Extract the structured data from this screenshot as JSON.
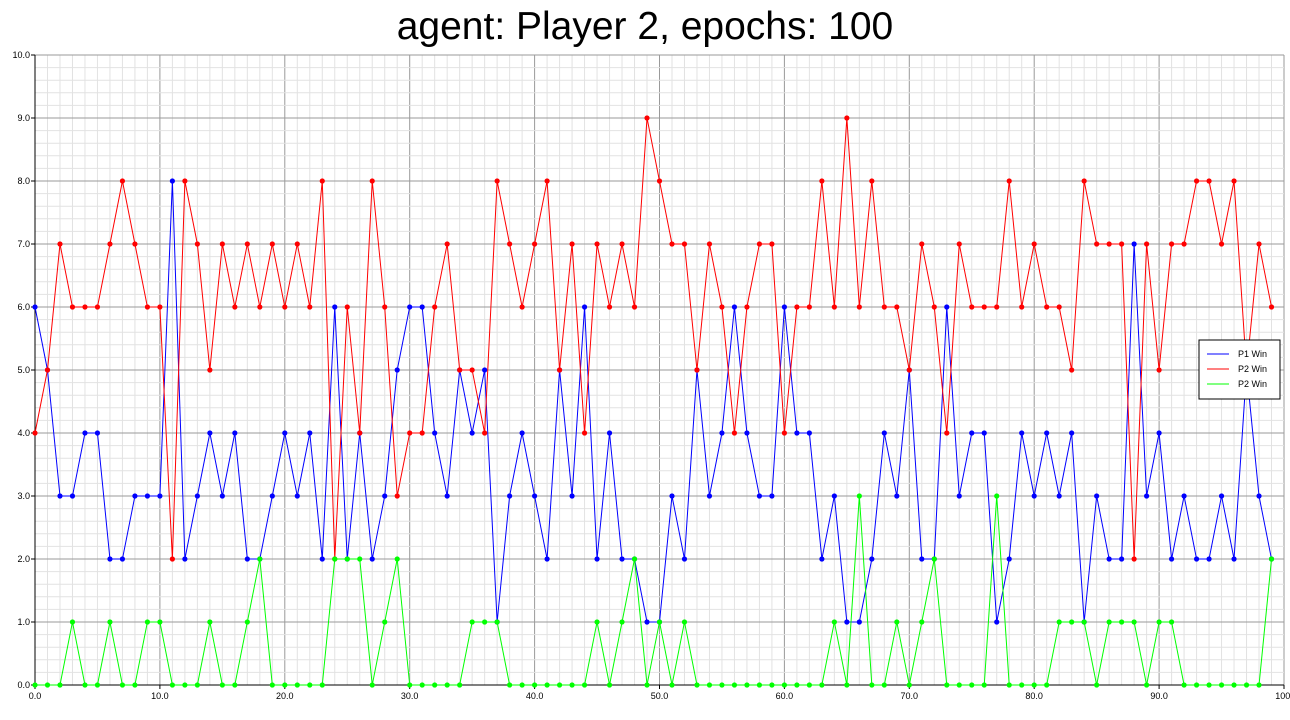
{
  "chart_data": {
    "type": "line",
    "title": "agent: Player 2, epochs: 100",
    "xlim": [
      0,
      100
    ],
    "ylim": [
      0,
      10
    ],
    "grid": true,
    "x_tick_labels": [
      "0.0",
      "10.0",
      "20.0",
      "30.0",
      "40.0",
      "50.0",
      "60.0",
      "70.0",
      "80.0",
      "90.0",
      "100."
    ],
    "y_tick_labels": [
      "0.0",
      "1.0",
      "2.0",
      "3.0",
      "4.0",
      "5.0",
      "6.0",
      "7.0",
      "8.0",
      "9.0",
      "10.0"
    ],
    "legend_position": "right",
    "series": [
      {
        "name": "P1 Win",
        "color": "#0000ff",
        "values": [
          6,
          5,
          3,
          3,
          4,
          4,
          2,
          2,
          3,
          3,
          3,
          8,
          2,
          3,
          4,
          3,
          4,
          2,
          2,
          3,
          4,
          3,
          4,
          2,
          6,
          2,
          4,
          2,
          3,
          5,
          6,
          6,
          4,
          3,
          5,
          4,
          5,
          1,
          3,
          4,
          3,
          2,
          5,
          3,
          6,
          2,
          4,
          2,
          2,
          1,
          1,
          3,
          2,
          5,
          3,
          4,
          6,
          4,
          3,
          3,
          6,
          4,
          4,
          2,
          3,
          1,
          1,
          2,
          4,
          3,
          5,
          2,
          2,
          6,
          3,
          4,
          4,
          1,
          2,
          4,
          3,
          4,
          3,
          4,
          1,
          3,
          2,
          2,
          7,
          3,
          4,
          2,
          3,
          2,
          2,
          3,
          2,
          5,
          3,
          2
        ]
      },
      {
        "name": "P2 Win",
        "color": "#ff0000",
        "values": [
          4,
          5,
          7,
          6,
          6,
          6,
          7,
          8,
          7,
          6,
          6,
          2,
          8,
          7,
          5,
          7,
          6,
          7,
          6,
          7,
          6,
          7,
          6,
          8,
          2,
          6,
          4,
          8,
          6,
          3,
          4,
          4,
          6,
          7,
          5,
          5,
          4,
          8,
          7,
          6,
          7,
          8,
          5,
          7,
          4,
          7,
          6,
          7,
          6,
          9,
          8,
          7,
          7,
          5,
          7,
          6,
          4,
          6,
          7,
          7,
          4,
          6,
          6,
          8,
          6,
          9,
          6,
          8,
          6,
          6,
          5,
          7,
          6,
          4,
          7,
          6,
          6,
          6,
          8,
          6,
          7,
          6,
          6,
          5,
          8,
          7,
          7,
          7,
          2,
          7,
          5,
          7,
          7,
          8,
          8,
          7,
          8,
          5,
          7,
          6
        ]
      },
      {
        "name": "P2 Win",
        "color": "#00ff00",
        "values": [
          0,
          0,
          0,
          1,
          0,
          0,
          1,
          0,
          0,
          1,
          1,
          0,
          0,
          0,
          1,
          0,
          0,
          1,
          2,
          0,
          0,
          0,
          0,
          0,
          2,
          2,
          2,
          0,
          1,
          2,
          0,
          0,
          0,
          0,
          0,
          1,
          1,
          1,
          0,
          0,
          0,
          0,
          0,
          0,
          0,
          1,
          0,
          1,
          2,
          0,
          1,
          0,
          1,
          0,
          0,
          0,
          0,
          0,
          0,
          0,
          0,
          0,
          0,
          0,
          1,
          0,
          3,
          0,
          0,
          1,
          0,
          1,
          2,
          0,
          0,
          0,
          0,
          3,
          0,
          0,
          0,
          0,
          1,
          1,
          1,
          0,
          1,
          1,
          1,
          0,
          1,
          1,
          0,
          0,
          0,
          0,
          0,
          0,
          0,
          2
        ]
      }
    ]
  }
}
